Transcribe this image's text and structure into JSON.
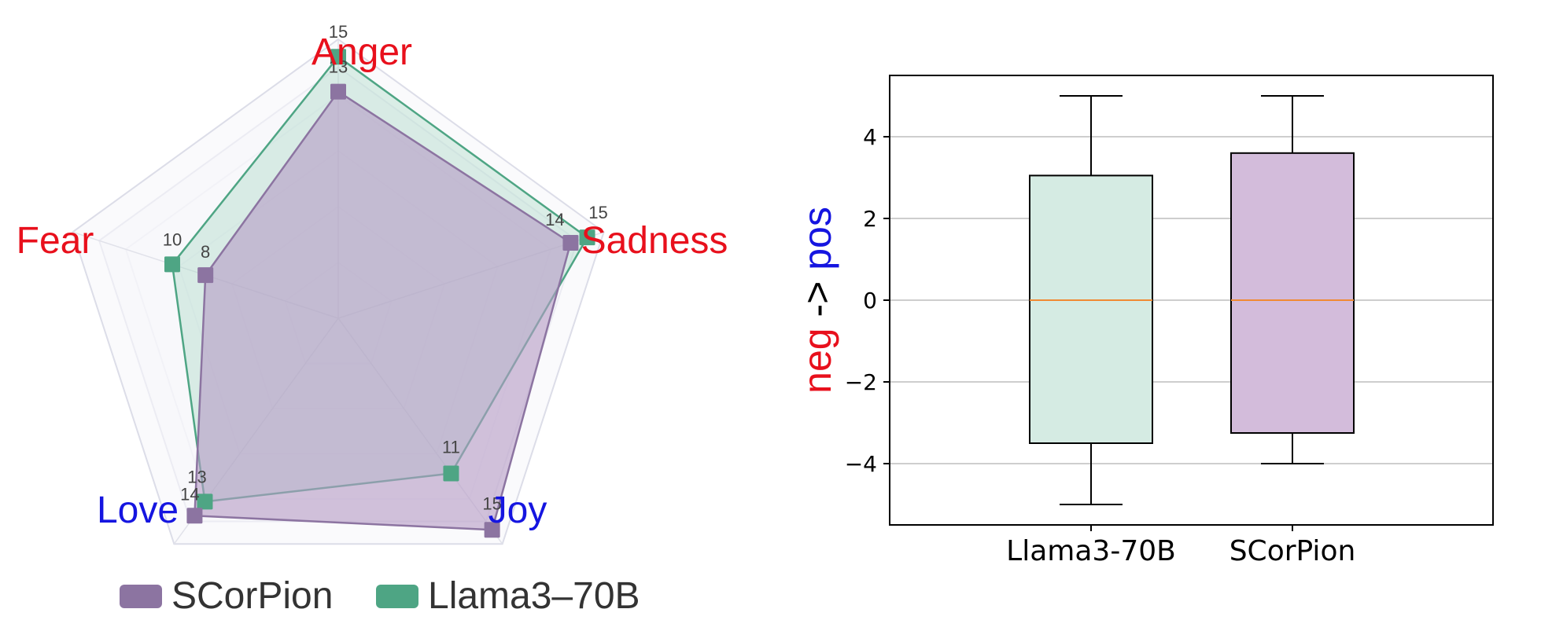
{
  "chart_data": [
    {
      "type": "radar",
      "axes": [
        "Anger",
        "Sadness",
        "Joy",
        "Love",
        "Fear"
      ],
      "axis_colors": [
        "#e8101c",
        "#e8101c",
        "#1515e0",
        "#1515e0",
        "#e8101c"
      ],
      "rmax": 16,
      "series": [
        {
          "name": "SCorPion",
          "values": [
            13,
            14,
            15,
            14,
            8
          ],
          "color": "#8c74a1",
          "fill": "#b59bc4"
        },
        {
          "name": "Llama3‒70B",
          "values": [
            15,
            15,
            11,
            13,
            10
          ],
          "color": "#4ea584",
          "fill": "#9fd3bd"
        }
      ],
      "value_labels": {
        "SCorPion": [
          "13",
          "14",
          "15",
          "14",
          "8"
        ],
        "Llama3‒70B": [
          "15",
          "15",
          "11",
          "13",
          "10"
        ]
      },
      "legend": {
        "placement": "bottom",
        "entries": [
          "SCorPion",
          "Llama3‒70B"
        ]
      }
    },
    {
      "type": "box",
      "categories": [
        "Llama3-70B",
        "SCorPion"
      ],
      "boxes": [
        {
          "category": "Llama3-70B",
          "whislo": -5,
          "q1": -3.5,
          "med": 0,
          "q3": 3.05,
          "whishi": 5,
          "fill": "#d5ebe3"
        },
        {
          "category": "SCorPion",
          "whislo": -4,
          "q1": -3.25,
          "med": 0,
          "q3": 3.6,
          "whishi": 5,
          "fill": "#d3bcdb"
        }
      ],
      "median_color": "#f08a33",
      "ylabel_parts": [
        {
          "text": "neg",
          "color": "#e8101c"
        },
        {
          "text": " -> ",
          "color": "#000000"
        },
        {
          "text": "pos",
          "color": "#1515e0"
        }
      ],
      "ylim": [
        -5.5,
        5.5
      ],
      "yticks": [
        -4,
        -2,
        0,
        2,
        4
      ],
      "ytick_labels": [
        "−4",
        "−2",
        "0",
        "2",
        "4"
      ],
      "grid": "y"
    }
  ]
}
